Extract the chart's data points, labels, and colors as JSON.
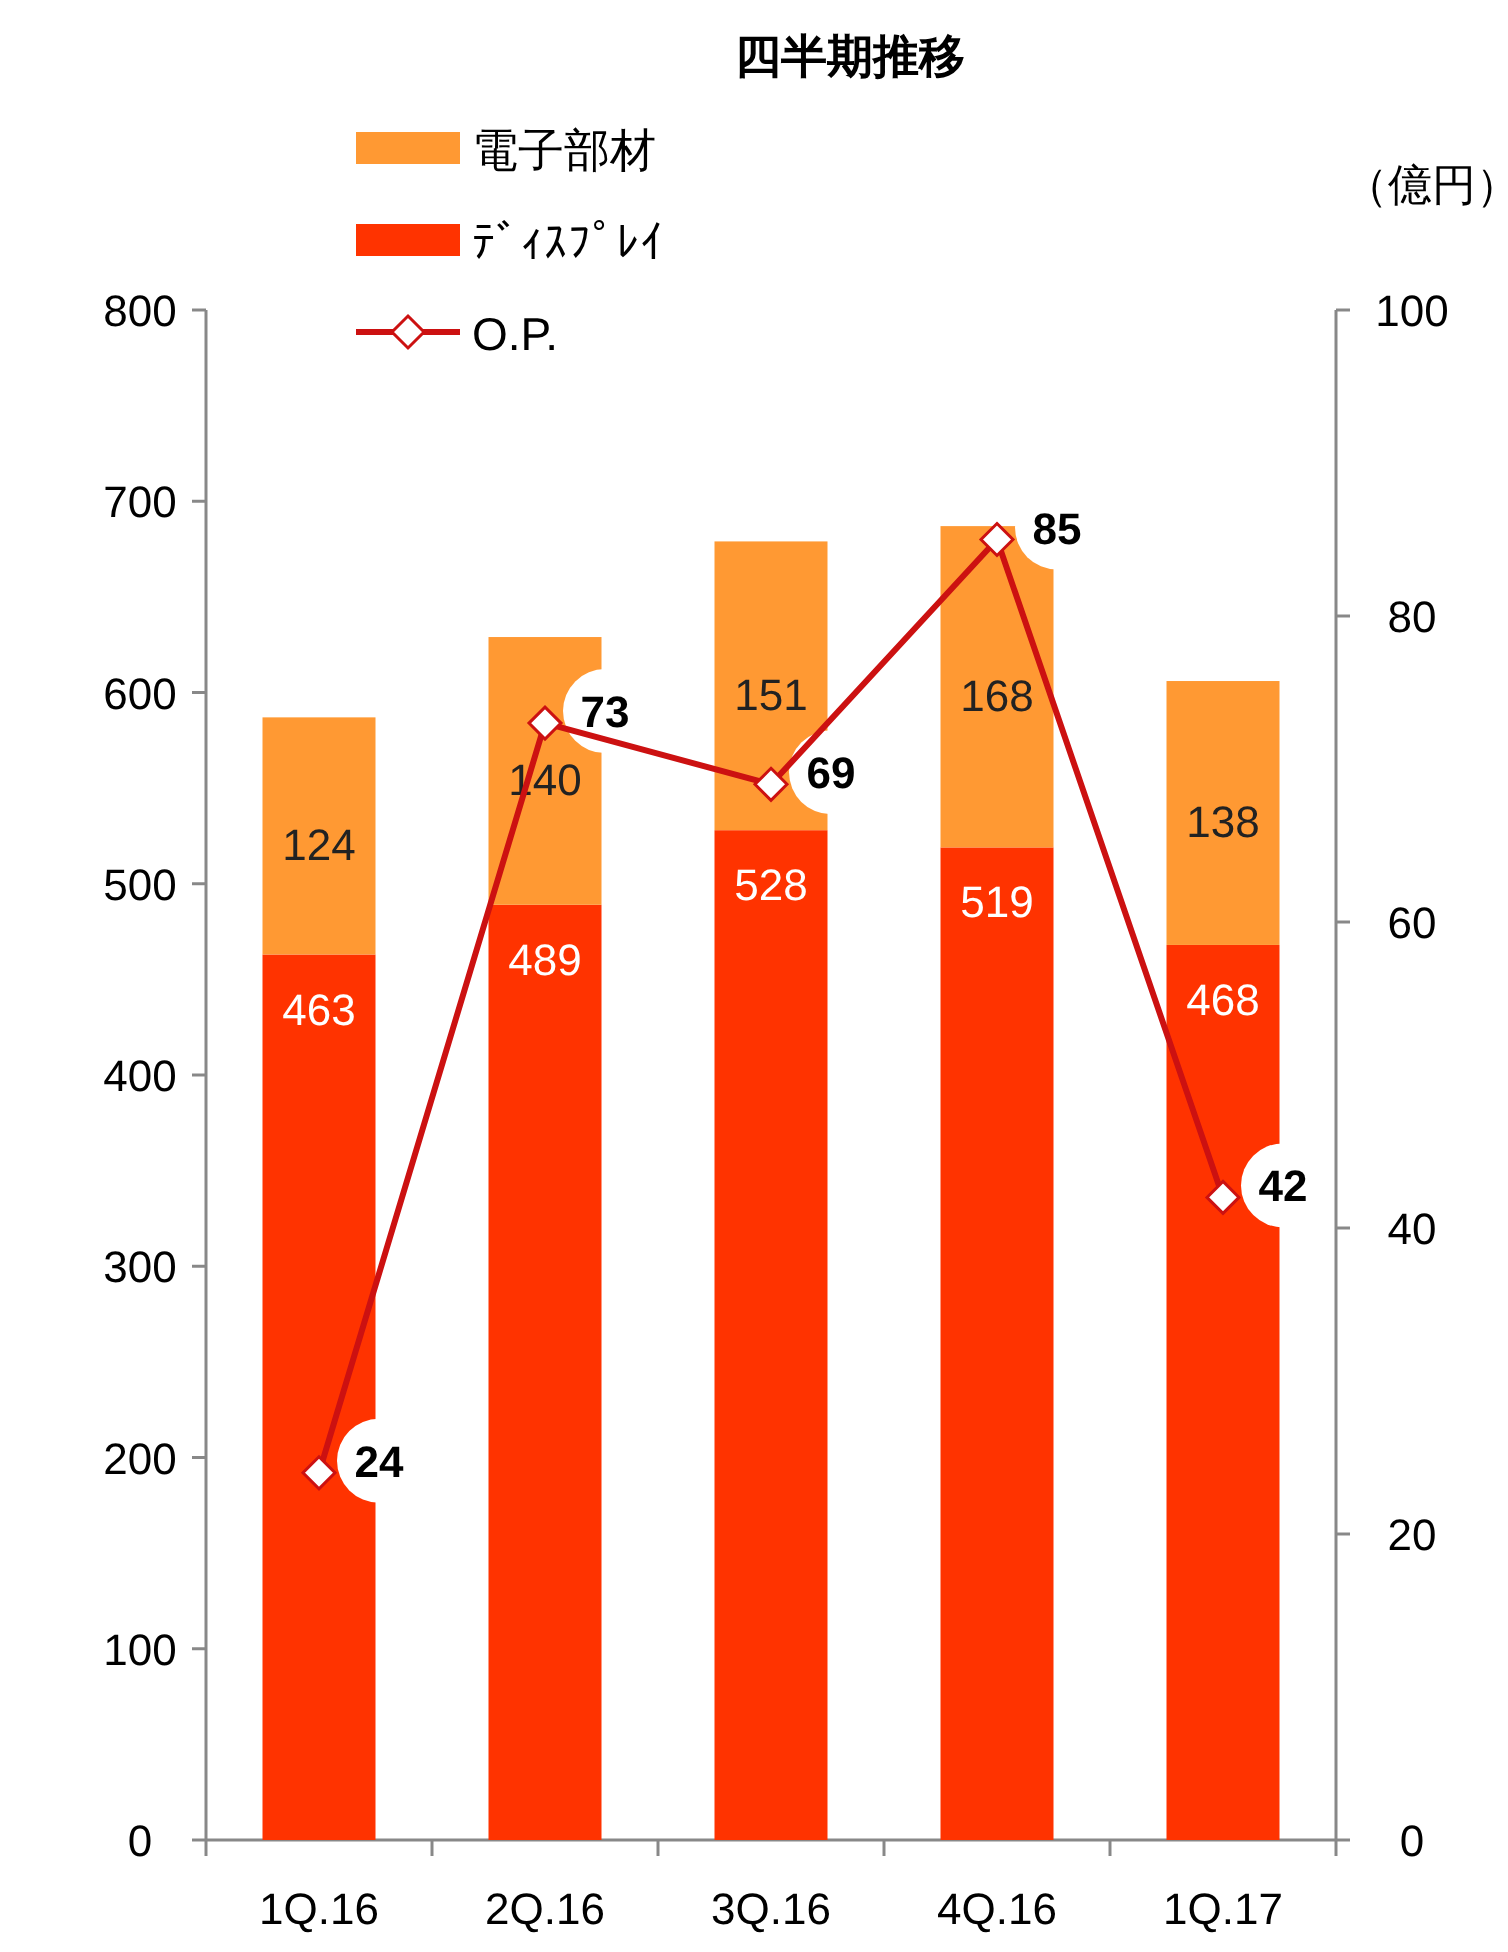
{
  "chart_data": {
    "type": "bar",
    "title": "四半期推移",
    "y2label": "（億円）",
    "categories": [
      "1Q.16",
      "2Q.16",
      "3Q.16",
      "4Q.16",
      "1Q.17"
    ],
    "stacked": true,
    "data_labels": true,
    "legend": "top left",
    "grid": false,
    "marker": "diamond",
    "line_style": "solid",
    "ylim": [
      0,
      800
    ],
    "yticks": [
      0,
      100,
      200,
      300,
      400,
      500,
      600,
      700,
      800
    ],
    "y2lim": [
      0,
      100
    ],
    "y2ticks": [
      0,
      20,
      40,
      60,
      80,
      100
    ],
    "series": [
      {
        "name": "ﾃﾞｨｽﾌﾟﾚｲ",
        "color": "#ff3300",
        "values": [
          463,
          489,
          528,
          519,
          468
        ]
      },
      {
        "name": "電子部材",
        "color": "#ff9933",
        "values": [
          124,
          140,
          151,
          168,
          138
        ]
      },
      {
        "name": "O.P.",
        "type": "line",
        "axis": "y2",
        "color": "#cc1111",
        "values": [
          24,
          73,
          69,
          85,
          42
        ]
      }
    ]
  }
}
